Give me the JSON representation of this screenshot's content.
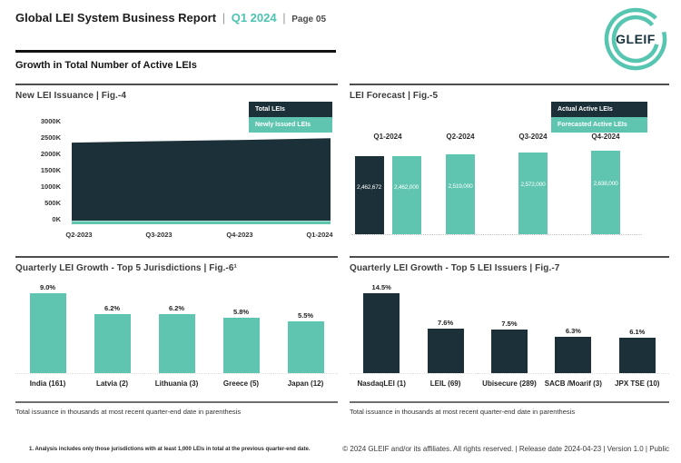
{
  "page": {
    "header": {
      "title": "Global LEI System Business Report",
      "sep": "|",
      "period": "Q1 2024",
      "page_label": "Page 05",
      "logo_text": "GLEIF"
    },
    "section_title": "Growth in Total Number of Active LEIs",
    "footnote_left": "1. Analysis includes only those jurisdictions with at least 1,000 LEIs in total at the previous quarter-end date.",
    "footer_right": "© 2024 GLEIF and/or its affiliates. All rights reserved. | Release date 2024-04-23 | Version 1.0 | Public"
  },
  "colors": {
    "dark": "#1b3038",
    "teal": "#5fc5b0",
    "teal_text": "#4cc3b0"
  },
  "chart_data": [
    {
      "id": "fig4",
      "type": "area",
      "title": "New LEI Issuance | Fig.-4",
      "legend": [
        {
          "label": "Total LEIs",
          "color": "dark"
        },
        {
          "label": "Newly Issued LEIs",
          "color": "teal"
        }
      ],
      "x": [
        "Q2-2023",
        "Q3-2023",
        "Q4-2023",
        "Q1-2024"
      ],
      "series": [
        {
          "name": "Total LEIs",
          "values_thousands": [
            2330,
            2375,
            2415,
            2463
          ]
        },
        {
          "name": "Newly Issued LEIs",
          "values_thousands": [
            65,
            60,
            62,
            68
          ]
        }
      ],
      "ylim_thousands": [
        0,
        3000
      ],
      "yticks": [
        "3000K",
        "2500K",
        "2000K",
        "1500K",
        "1000K",
        "500K",
        "0K"
      ],
      "grid": false,
      "legend_position": "top-right"
    },
    {
      "id": "fig5",
      "type": "bar",
      "title": "LEI Forecast | Fig.-5",
      "legend": [
        {
          "label": "Actual Active LEIs",
          "color": "dark"
        },
        {
          "label": "Forecasted Active LEIs",
          "color": "teal"
        }
      ],
      "categories": [
        "Q1-2024",
        "Q2-2024",
        "Q3-2024",
        "Q4-2024"
      ],
      "series": [
        {
          "name": "Actual Active LEIs",
          "values": [
            2462672,
            null,
            null,
            null
          ]
        },
        {
          "name": "Forecasted Active LEIs",
          "values": [
            2462000,
            2519000,
            2572000,
            2638000
          ]
        }
      ],
      "bar_value_labels": {
        "actual": [
          "2,462,672",
          null,
          null,
          null
        ],
        "forecast": [
          "2,462,000",
          "2,519,000",
          "2,572,000",
          "2,638,000"
        ]
      },
      "legend_position": "top-right"
    },
    {
      "id": "fig6",
      "type": "bar",
      "title": "Quarterly LEI Growth - Top 5 Jurisdictions | Fig.-6¹",
      "categories": [
        "India (161)",
        "Latvia (2)",
        "Lithuania (3)",
        "Greece (5)",
        "Japan (12)"
      ],
      "values_percent": [
        9.0,
        6.2,
        6.2,
        5.8,
        5.5
      ],
      "value_labels": [
        "9.0%",
        "6.2%",
        "6.2%",
        "5.8%",
        "5.5%"
      ],
      "bar_color": "teal",
      "footnote": "Total issuance in thousands at most recent quarter-end date in parenthesis"
    },
    {
      "id": "fig7",
      "type": "bar",
      "title": "Quarterly LEI Growth - Top 5 LEI Issuers | Fig.-7",
      "categories": [
        "NasdaqLEI (1)",
        "LEIL (69)",
        "Ubisecure (289)",
        "SACB /Moarif (3)",
        "JPX TSE (10)"
      ],
      "values_percent": [
        14.5,
        7.6,
        7.5,
        6.3,
        6.1
      ],
      "value_labels": [
        "14.5%",
        "7.6%",
        "7.5%",
        "6.3%",
        "6.1%"
      ],
      "bar_color": "dark",
      "footnote": "Total issuance in thousands at most recent quarter-end date in parenthesis"
    }
  ]
}
